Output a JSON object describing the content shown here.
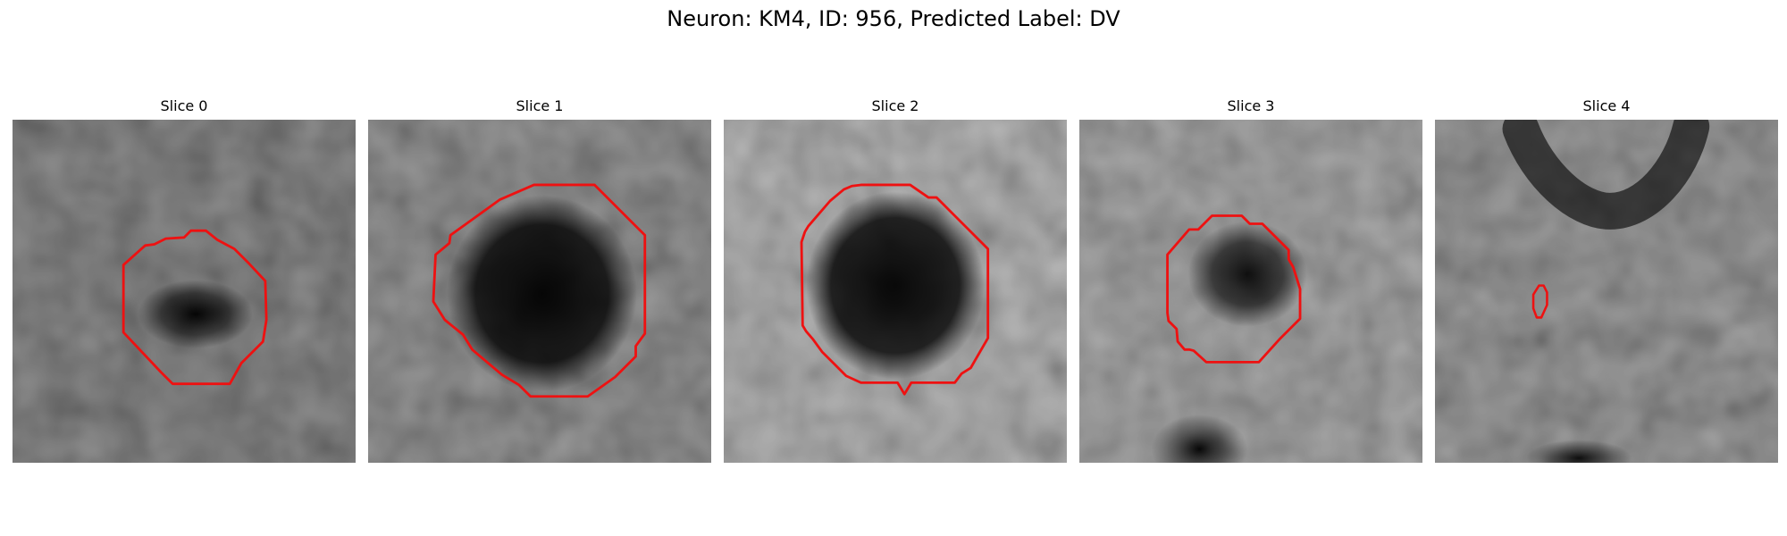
{
  "figure": {
    "title": "Neuron: KM4, ID: 956, Predicted Label: DV"
  },
  "slices": [
    {
      "title": "Slice 0"
    },
    {
      "title": "Slice 1"
    },
    {
      "title": "Slice 2"
    },
    {
      "title": "Slice 3"
    },
    {
      "title": "Slice 4"
    }
  ],
  "colors": {
    "contour": "#ee1111",
    "background": "#ffffff",
    "colormap": "gray"
  }
}
